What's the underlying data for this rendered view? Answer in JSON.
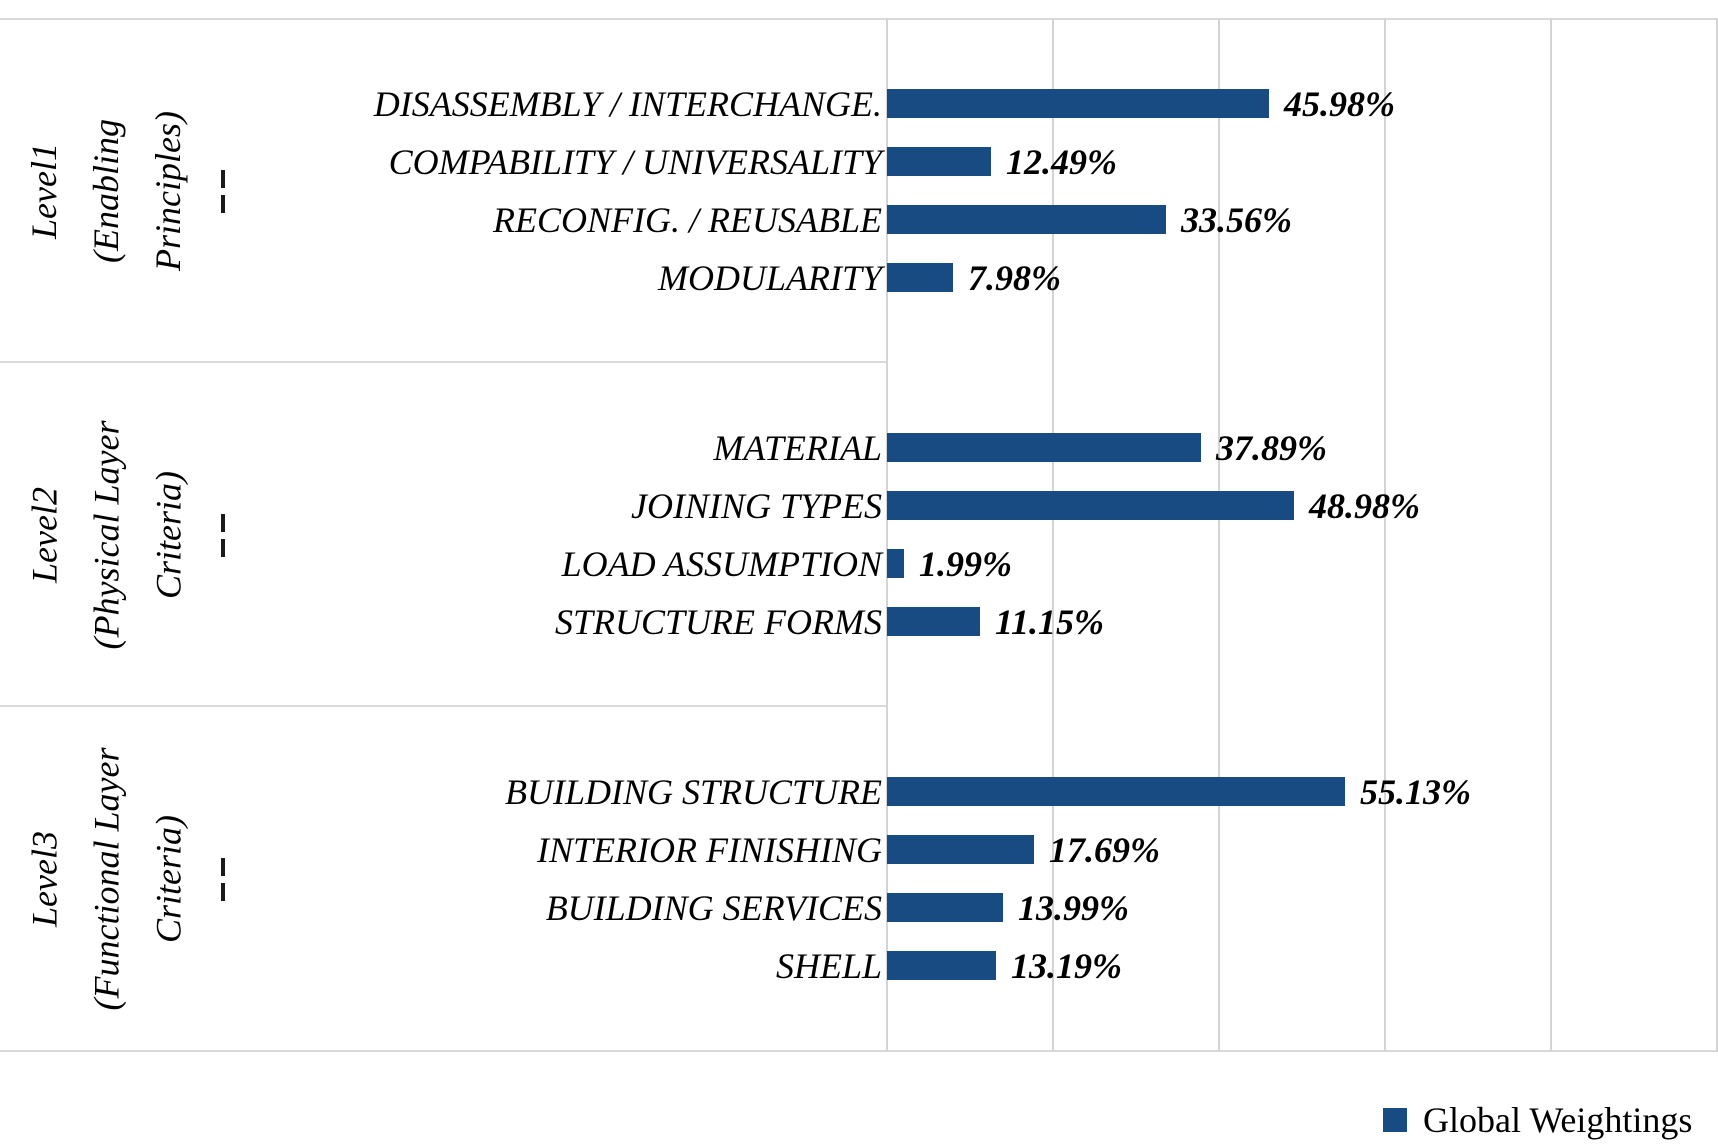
{
  "colors": {
    "bar": "#174b82",
    "gridline": "#d4d4d4",
    "frame_line": "#d9d9d9",
    "text": "#000000"
  },
  "chart_data": {
    "type": "bar",
    "orientation": "horizontal",
    "unit": "percent",
    "title": "",
    "xlabel": "",
    "ylabel": "",
    "x_axis": {
      "min": 0,
      "max": 100,
      "gridline_interval": 20,
      "tick_labels_visible": false,
      "grid": true
    },
    "legend_label": "Global Weightings",
    "legend_position": "bottom-right",
    "groups": [
      {
        "level": "Level1",
        "qualifier": "(Enabling Principles)",
        "label_lines": [
          "Level1",
          "(Enabling",
          "Principles)"
        ],
        "items": [
          {
            "category": "DISASSEMBLY / INTERCHANGE.",
            "value": 45.98,
            "label": "45.98%"
          },
          {
            "category": "COMPABILITY / UNIVERSALITY",
            "value": 12.49,
            "label": "12.49%"
          },
          {
            "category": "RECONFIG. / REUSABLE",
            "value": 33.56,
            "label": "33.56%"
          },
          {
            "category": "MODULARITY",
            "value": 7.98,
            "label": "7.98%"
          }
        ]
      },
      {
        "level": "Level2",
        "qualifier": "(Physical Layer Criteria)",
        "label_lines": [
          "Level2",
          "(Physical Layer",
          "Criteria)"
        ],
        "items": [
          {
            "category": "MATERIAL",
            "value": 37.89,
            "label": "37.89%"
          },
          {
            "category": "JOINING TYPES",
            "value": 48.98,
            "label": "48.98%"
          },
          {
            "category": "LOAD ASSUMPTION",
            "value": 1.99,
            "label": "1.99%"
          },
          {
            "category": "STRUCTURE FORMS",
            "value": 11.15,
            "label": "11.15%"
          }
        ]
      },
      {
        "level": "Level3",
        "qualifier": "(Functional Layer Criteria)",
        "label_lines": [
          "Level3",
          "(Functional Layer",
          "Criteria)"
        ],
        "items": [
          {
            "category": "BUILDING STRUCTURE",
            "value": 55.13,
            "label": "55.13%"
          },
          {
            "category": "INTERIOR FINISHING",
            "value": 17.69,
            "label": "17.69%"
          },
          {
            "category": "BUILDING SERVICES",
            "value": 13.99,
            "label": "13.99%"
          },
          {
            "category": "SHELL",
            "value": 13.19,
            "label": "13.19%"
          }
        ]
      }
    ]
  }
}
